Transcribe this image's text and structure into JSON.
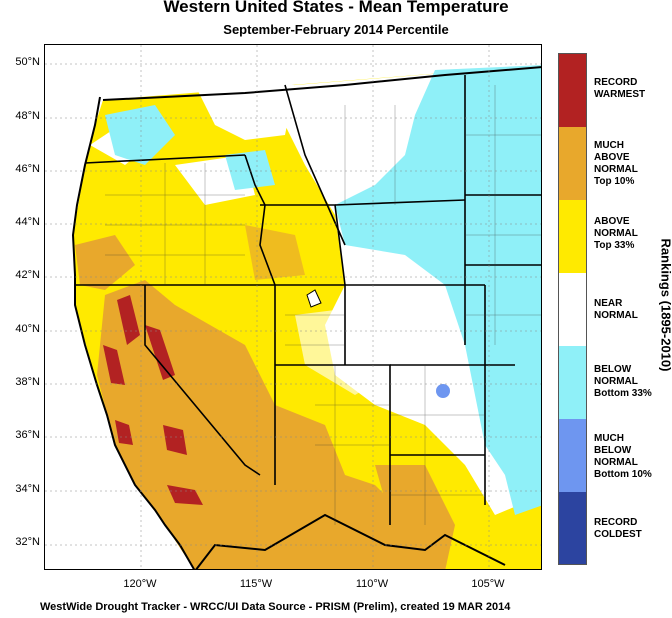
{
  "header": {
    "title": "Western United States - Mean Temperature",
    "subtitle": "September-February 2014 Percentile"
  },
  "axes": {
    "lat_labels": [
      "50°N",
      "48°N",
      "46°N",
      "44°N",
      "42°N",
      "40°N",
      "38°N",
      "36°N",
      "34°N",
      "32°N"
    ],
    "lon_labels": [
      "120°W",
      "115°W",
      "110°W",
      "105°W"
    ]
  },
  "legend": {
    "title": "Rankings (1895-2010)",
    "items": [
      {
        "label": "RECORD\nWARMEST",
        "color": "#b22222"
      },
      {
        "label": "MUCH\nABOVE\nNORMAL\nTop 10%",
        "color": "#e8a82c"
      },
      {
        "label": "ABOVE\nNORMAL\nTop 33%",
        "color": "#ffea00"
      },
      {
        "label": "NEAR\nNORMAL",
        "color": "#ffffff"
      },
      {
        "label": "BELOW\nNORMAL\nBottom 33%",
        "color": "#8ff0f8"
      },
      {
        "label": "MUCH\nBELOW\nNORMAL\nBottom 10%",
        "color": "#6e96f0"
      },
      {
        "label": "RECORD\nCOLDEST",
        "color": "#2c44a0"
      }
    ]
  },
  "footer": "WestWide Drought Tracker - WRCC/UI  Data Source - PRISM (Prelim), created 19 MAR 2014"
}
